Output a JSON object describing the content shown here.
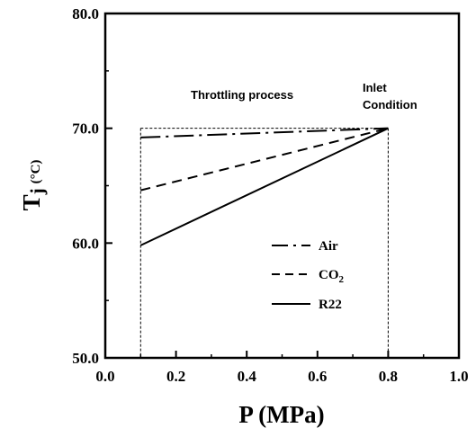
{
  "chart_data": {
    "type": "line",
    "xlabel": "P (MPa)",
    "ylabel_main": "T",
    "ylabel_sub": "j",
    "ylabel_unit": "(°C)",
    "xlim": [
      0.0,
      1.0
    ],
    "ylim": [
      50.0,
      80.0
    ],
    "x_ticks": [
      "0.0",
      "0.2",
      "0.4",
      "0.6",
      "0.8",
      "1.0"
    ],
    "y_ticks": [
      "50.0",
      "60.0",
      "70.0",
      "80.0"
    ],
    "grid": false,
    "legend_position": "lower-right",
    "annotations": {
      "throttling": "Throttling process",
      "inlet_line1": "Inlet",
      "inlet_line2": "Condition"
    },
    "guide_box": {
      "x": [
        0.1,
        0.8
      ],
      "y": [
        50.0,
        70.0
      ]
    },
    "series": [
      {
        "name": "Air",
        "style": "dashdot",
        "x": [
          0.1,
          0.8
        ],
        "y": [
          69.2,
          70.0
        ]
      },
      {
        "name": "CO₂",
        "name_main": "CO",
        "name_sub": "2",
        "style": "dashed",
        "x": [
          0.1,
          0.8
        ],
        "y": [
          64.6,
          70.0
        ]
      },
      {
        "name": "R22",
        "style": "solid",
        "x": [
          0.1,
          0.8
        ],
        "y": [
          59.8,
          70.0
        ]
      }
    ]
  }
}
